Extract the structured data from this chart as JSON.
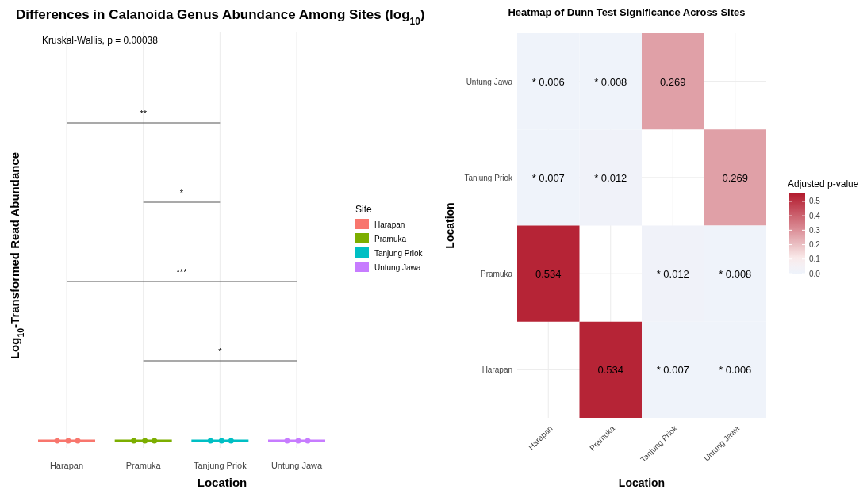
{
  "chart_data": [
    {
      "type": "other",
      "title": "Differences in Calanoida Genus Abundance Among Sites (log$_{10}$)",
      "xlabel": "Location",
      "ylabel": "Log$_{10}$-Transformed Read Abundance",
      "legend_title": "Site",
      "categories": [
        "Harapan",
        "Pramuka",
        "Tanjung Priok",
        "Untung Jawa"
      ],
      "colors": [
        "#f8766d",
        "#7cae00",
        "#00bfc4",
        "#c77cff"
      ],
      "annotations": [
        "Kruskal-Wallis, p = 0.00038",
        "**",
        "*",
        "***",
        "*"
      ]
    },
    {
      "type": "heatmap",
      "title": "Heatmap of Dunn Test Significance Across Sites",
      "xlabel": "Location",
      "ylabel": "Location",
      "clabel": "Adjusted p-value",
      "grid": true,
      "categories": [
        "Harapan",
        "Pramuka",
        "Tanjung Priok",
        "Untung Jawa"
      ],
      "y_categories": [
        "Untung Jawa",
        "Tanjung Priok",
        "Pramuka",
        "Harapan"
      ],
      "cells": [
        [
          0.006,
          0.008,
          0.269,
          null
        ],
        [
          0.007,
          0.012,
          null,
          0.269
        ],
        [
          0.534,
          null,
          0.012,
          0.008
        ],
        [
          null,
          0.534,
          0.007,
          0.006
        ]
      ],
      "cell_labels": [
        [
          "* 0.006",
          "* 0.008",
          "0.269",
          null
        ],
        [
          "* 0.007",
          "* 0.012",
          null,
          "0.269"
        ],
        [
          "0.534",
          null,
          "* 0.012",
          "* 0.008"
        ],
        [
          null,
          "0.534",
          "* 0.007",
          "* 0.006"
        ]
      ],
      "clim": [
        0,
        0.56
      ],
      "cticks": [
        {
          "value": 0,
          "label": "0.0"
        },
        0.1,
        0.2,
        0.3,
        0.4,
        0.5
      ]
    }
  ]
}
